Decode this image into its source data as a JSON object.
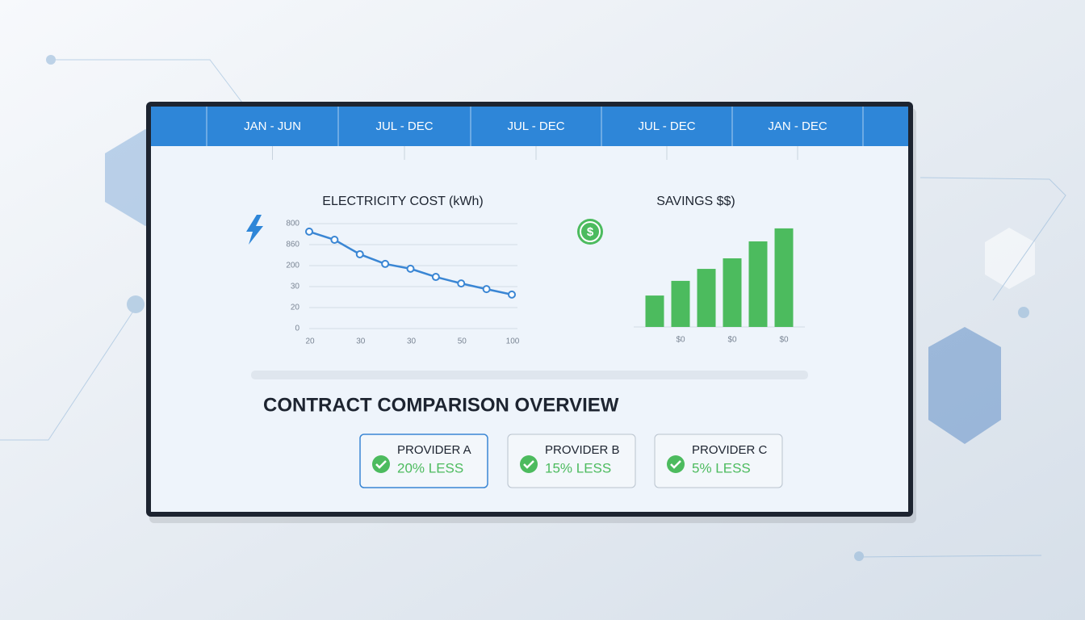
{
  "tabs": [
    "JAN - JUN",
    "JUL - DEC",
    "JUL - DEC",
    "JUL - DEC",
    "JAN - DEC"
  ],
  "chart_data": [
    {
      "type": "line",
      "title": "ELECTRICITY COST (kWh)",
      "x": [
        0,
        1,
        2,
        3,
        4,
        5,
        6,
        7,
        8
      ],
      "values": [
        4.62,
        4.23,
        3.54,
        3.08,
        2.85,
        2.46,
        2.15,
        1.88,
        1.62
      ],
      "xlim": [
        0,
        8
      ],
      "xticks": [
        {
          "value": 0,
          "label": "20"
        },
        {
          "value": 2,
          "label": "30"
        },
        {
          "value": 4,
          "label": "30"
        },
        {
          "value": 6,
          "label": "50"
        },
        {
          "value": 8,
          "label": "100"
        }
      ],
      "ylim": [
        0,
        5
      ],
      "yticks": [
        0,
        {
          "value": 1,
          "label": "20"
        },
        {
          "value": 2,
          "label": "30"
        },
        {
          "value": 3,
          "label": "200"
        },
        {
          "value": 4,
          "label": "860"
        },
        {
          "value": 5,
          "label": "800"
        }
      ],
      "color": "#3a86d4",
      "grid": true
    },
    {
      "type": "bar",
      "title": "SAVINGS $$)",
      "categories": [
        null,
        "$0",
        null,
        "$0",
        null,
        "$0"
      ],
      "values": [
        1.52,
        2.23,
        2.81,
        3.32,
        4.14,
        4.77
      ],
      "ylim": [
        0,
        5
      ],
      "color": "#4cbb5e"
    }
  ],
  "section_title": "CONTRACT COMPARISON OVERVIEW",
  "providers": [
    {
      "name": "PROVIDER A",
      "savings": "20% LESS"
    },
    {
      "name": "PROVIDER B",
      "savings": "15% LESS"
    },
    {
      "name": "PROVIDER C",
      "savings": "5% LESS"
    }
  ]
}
